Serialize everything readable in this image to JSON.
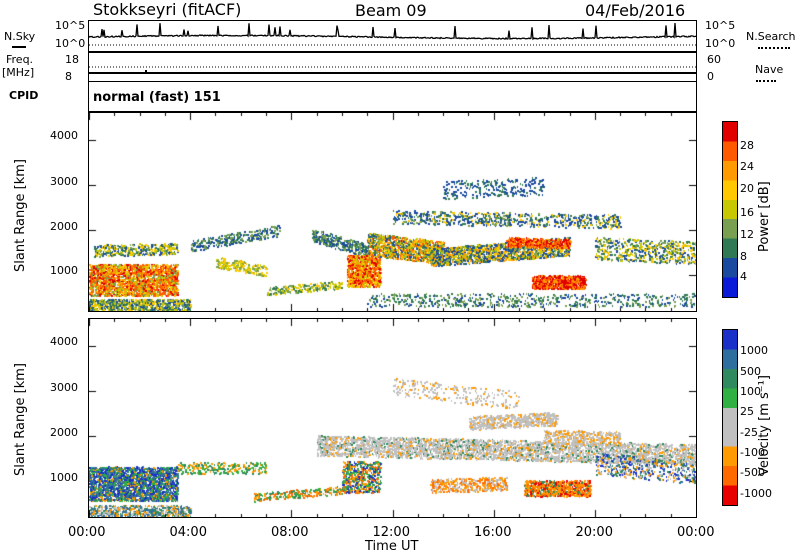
{
  "header": {
    "station": "Stokkseyri (fitACF)",
    "beam": "Beam 09",
    "date": "04/Feb/2016"
  },
  "top_panels": {
    "nsky_label": "N.Sky",
    "nsky_ticks": [
      "10^5",
      "10^0"
    ],
    "nsearch_label": "N.Search",
    "nsearch_ticks": [
      "10^5",
      "10^0"
    ],
    "freq_label": "Freq.",
    "freq_unit": "[MHz]",
    "freq_ticks": [
      "18",
      "8"
    ],
    "nave_label": "Nave",
    "nave_ticks": [
      "60",
      "0"
    ],
    "cpid_label": "CPID",
    "cpid_value": "normal (fast) 151"
  },
  "chart_data": [
    {
      "type": "heatmap",
      "name": "power",
      "ylabel": "Slant Range [km]",
      "yticks": [
        "4000",
        "3000",
        "2000",
        "1000"
      ],
      "ylim": [
        200,
        4600
      ],
      "xlim": [
        0,
        24
      ],
      "colorbar": {
        "label": "Power [dB]",
        "ticks": [
          "28",
          "24",
          "20",
          "16",
          "12",
          "8",
          "4"
        ],
        "colors": [
          "#e00000",
          "#ff5a00",
          "#ff9b00",
          "#ffc800",
          "#c8c800",
          "#78a050",
          "#2f7a55",
          "#1a4aa0",
          "#0a1ad8"
        ]
      }
    },
    {
      "type": "heatmap",
      "name": "velocity",
      "ylabel": "Slant Range [km]",
      "yticks": [
        "4000",
        "3000",
        "2000",
        "1000"
      ],
      "ylim": [
        200,
        4600
      ],
      "xlim": [
        0,
        24
      ],
      "xticks": [
        "00:00",
        "04:00",
        "08:00",
        "12:00",
        "16:00",
        "20:00",
        "00:00"
      ],
      "xlabel": "Time UT",
      "colorbar": {
        "label": "Velocity [m s⁻¹]",
        "ticks": [
          "1000",
          "500",
          "100",
          "25",
          "-25",
          "-100",
          "-500",
          "-1000"
        ],
        "colors": [
          "#1a30c8",
          "#2f6fa0",
          "#2f8a60",
          "#30b040",
          "#c0c0c0",
          "#c0c0c0",
          "#ff9a00",
          "#ff6a00",
          "#e80000"
        ]
      }
    }
  ]
}
